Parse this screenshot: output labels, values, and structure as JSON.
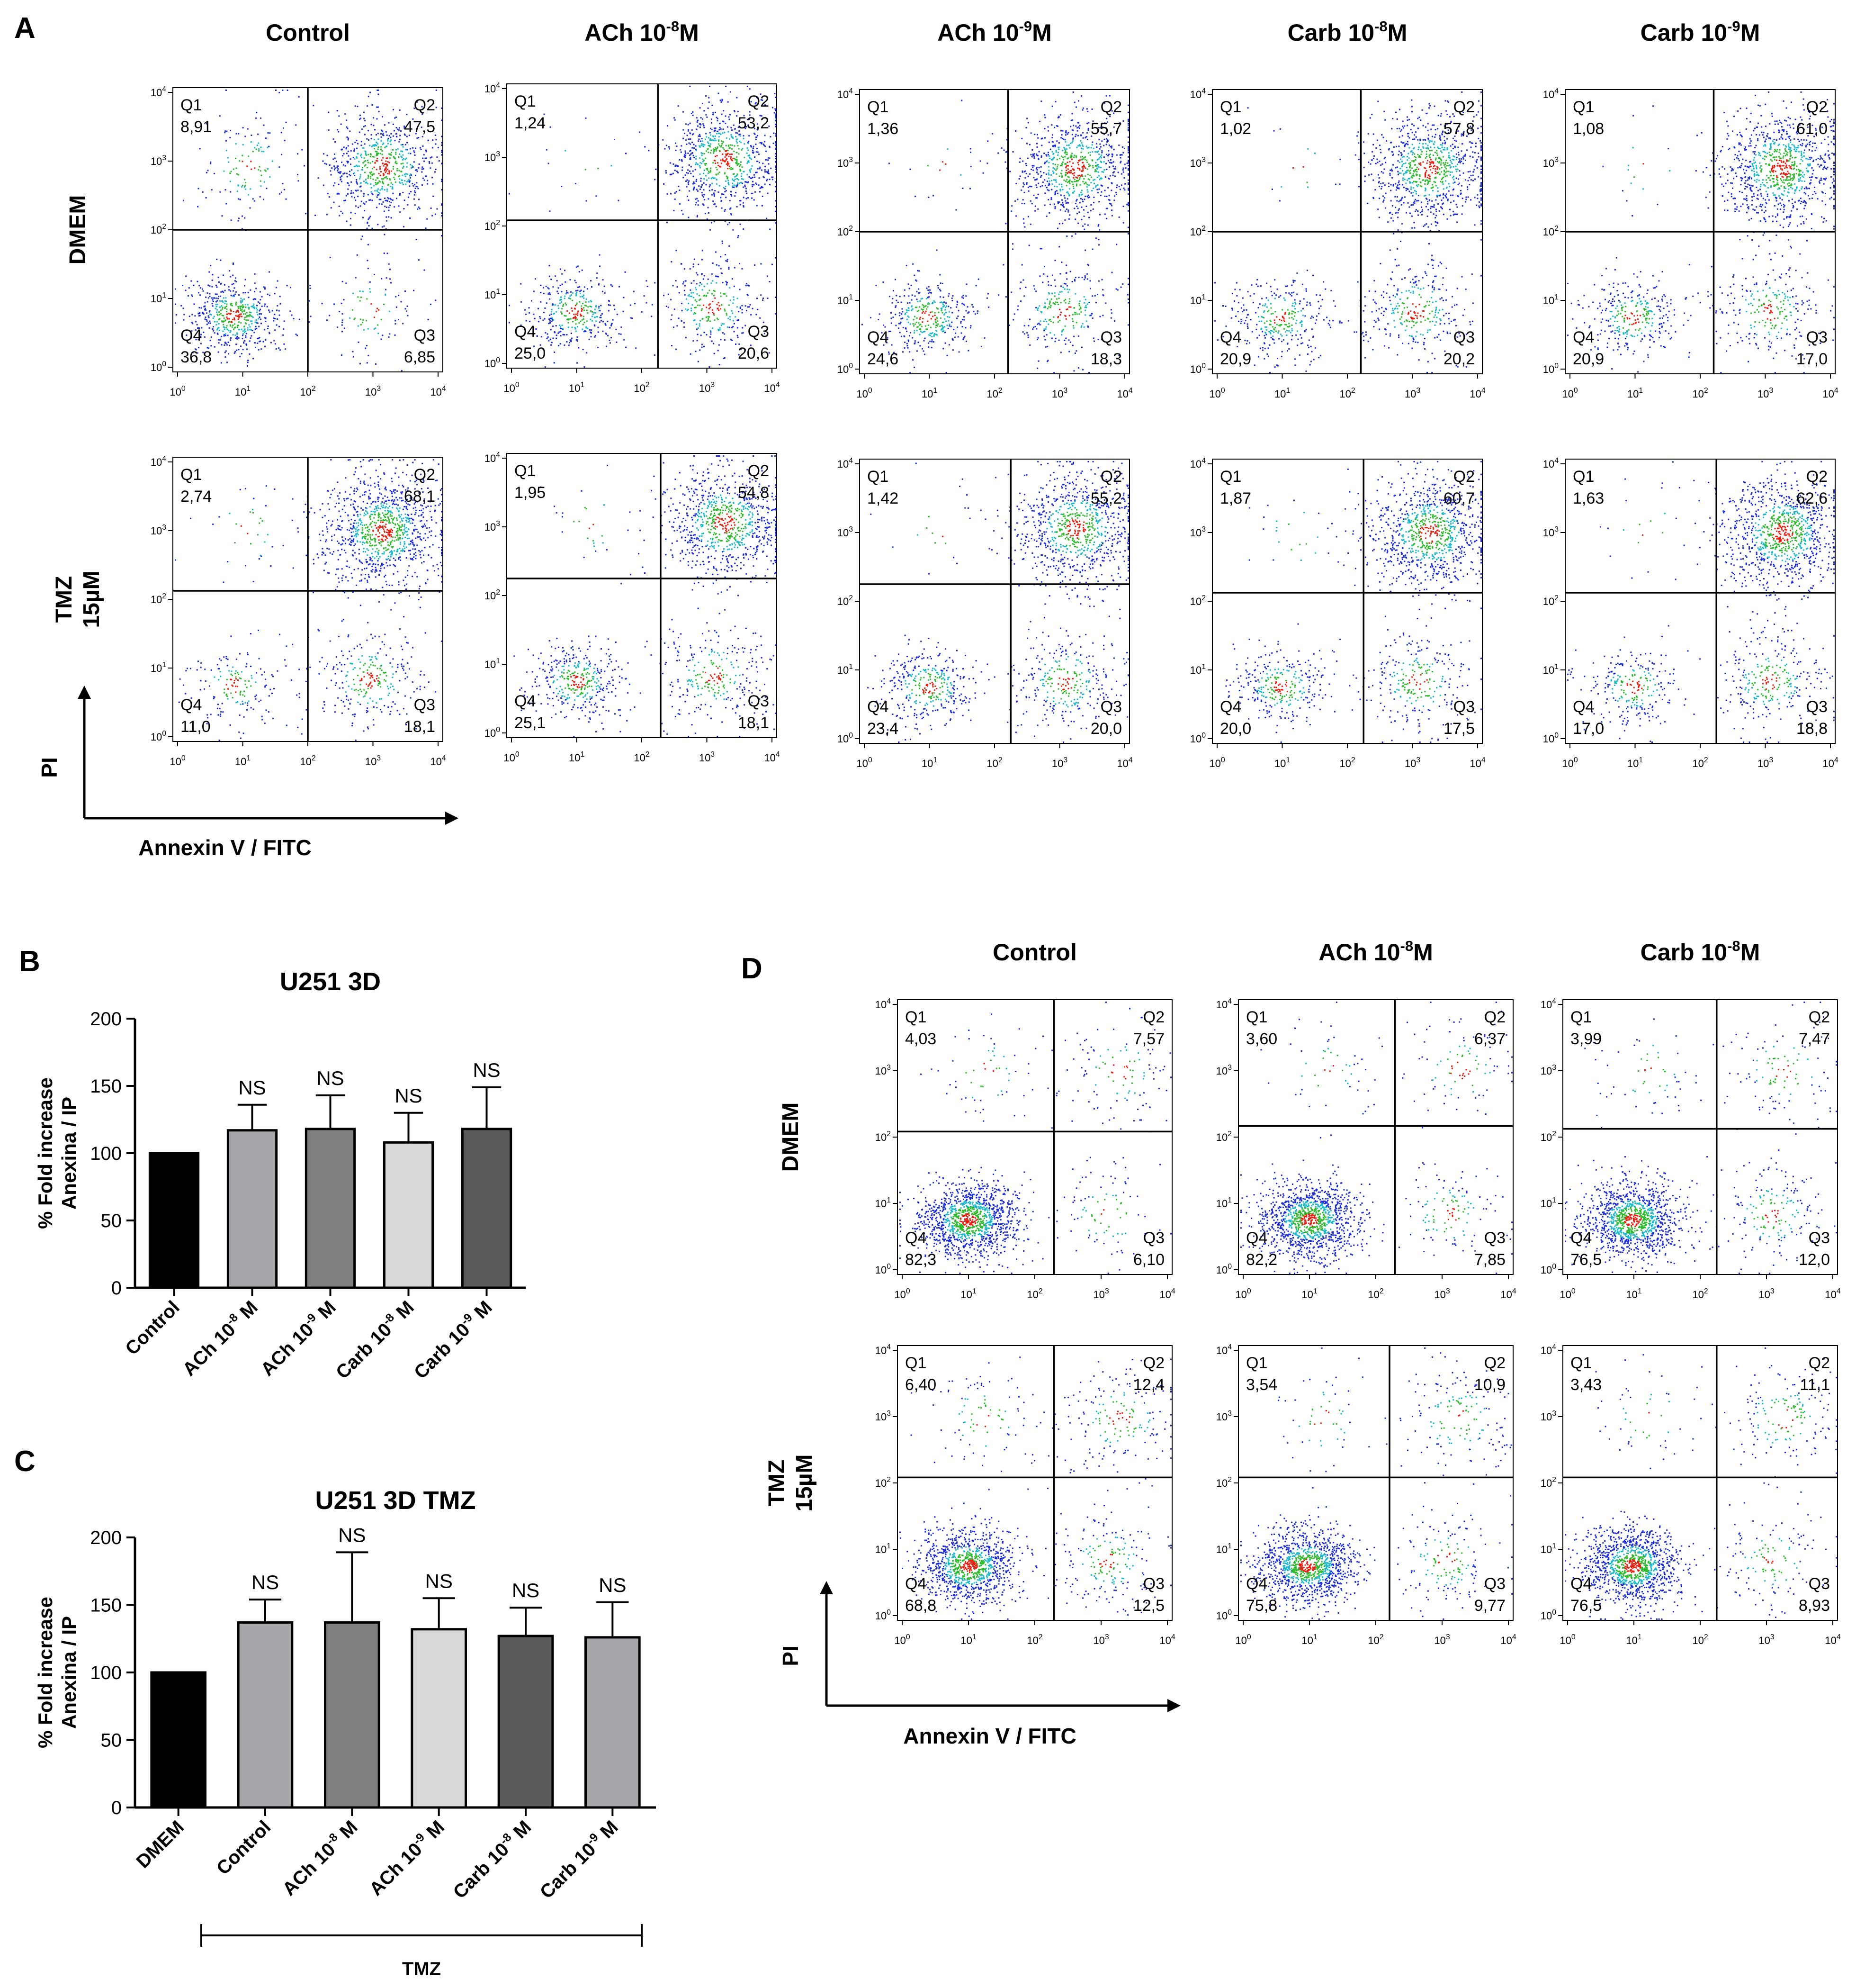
{
  "chart_data": [
    {
      "panel": "A",
      "type": "scatter",
      "subtype": "flow-cytometry-quadrant-grid",
      "columns": [
        "Control",
        "ACh 10-8M",
        "ACh 10-9M",
        "Carb 10-8M",
        "Carb 10-9M"
      ],
      "column_labels": [
        {
          "base": "Control",
          "exp": "",
          "tail": ""
        },
        {
          "base": "ACh 10",
          "exp": "-8",
          "tail": "M"
        },
        {
          "base": "ACh 10",
          "exp": "-9",
          "tail": "M"
        },
        {
          "base": "Carb 10",
          "exp": "-8",
          "tail": "M"
        },
        {
          "base": "Carb 10",
          "exp": "-9",
          "tail": "M"
        }
      ],
      "rows": [
        {
          "label_lines": [
            "DMEM"
          ]
        },
        {
          "label_lines": [
            "TMZ",
            "15µM"
          ]
        }
      ],
      "xlabel": "Annexin V / FITC",
      "ylabel": "PI",
      "axis_ticks": [
        "10^0",
        "10^1",
        "10^2",
        "10^3",
        "10^4"
      ],
      "quadrant_names": [
        "Q1",
        "Q2",
        "Q3",
        "Q4"
      ],
      "quadrants": [
        [
          {
            "Q1": "8,91",
            "Q2": "47,5",
            "Q3": "6,85",
            "Q4": "36,8"
          },
          {
            "Q1": "1,24",
            "Q2": "53,2",
            "Q3": "20,6",
            "Q4": "25,0"
          },
          {
            "Q1": "1,36",
            "Q2": "55,7",
            "Q3": "18,3",
            "Q4": "24,6"
          },
          {
            "Q1": "1,02",
            "Q2": "57,8",
            "Q3": "20,2",
            "Q4": "20,9"
          },
          {
            "Q1": "1,08",
            "Q2": "61,0",
            "Q3": "17,0",
            "Q4": "20,9"
          }
        ],
        [
          {
            "Q1": "2,74",
            "Q2": "68,1",
            "Q3": "18,1",
            "Q4": "11,0"
          },
          {
            "Q1": "1,95",
            "Q2": "54,8",
            "Q3": "18,1",
            "Q4": "25,1"
          },
          {
            "Q1": "1,42",
            "Q2": "55,2",
            "Q3": "20,0",
            "Q4": "23,4"
          },
          {
            "Q1": "1,87",
            "Q2": "60,7",
            "Q3": "17,5",
            "Q4": "20,0"
          },
          {
            "Q1": "1,63",
            "Q2": "62,6",
            "Q3": "18,8",
            "Q4": "17,0"
          }
        ]
      ]
    },
    {
      "panel": "B",
      "type": "bar",
      "title": "U251 3D",
      "ylabel_lines": [
        "% Fold increase",
        "Anexina / IP"
      ],
      "ylim": [
        0,
        200
      ],
      "yticks": [
        0,
        50,
        100,
        150,
        200
      ],
      "categories": [
        "Control",
        "ACh 10-8 M",
        "ACh 10-9 M",
        "Carb 10-8 M",
        "Carb 10-9 M"
      ],
      "category_labels": [
        {
          "base": "Control",
          "exp": "",
          "tail": ""
        },
        {
          "base": "ACh 10",
          "exp": "-8",
          "tail": " M"
        },
        {
          "base": "ACh 10",
          "exp": "-9",
          "tail": " M"
        },
        {
          "base": "Carb 10",
          "exp": "-8",
          "tail": " M"
        },
        {
          "base": "Carb 10",
          "exp": "-9",
          "tail": " M"
        }
      ],
      "values": [
        100,
        117,
        118,
        108,
        118
      ],
      "errors": [
        0,
        19,
        25,
        22,
        31
      ],
      "significance": [
        "",
        "NS",
        "NS",
        "NS",
        "NS"
      ],
      "bar_colors": [
        "#000000",
        "#a6a6aa",
        "#808080",
        "#d9d9d9",
        "#5a5a5a"
      ]
    },
    {
      "panel": "C",
      "type": "bar",
      "title": "U251 3D TMZ",
      "ylabel_lines": [
        "% Fold increase",
        "Anexina / IP"
      ],
      "ylim": [
        0,
        200
      ],
      "yticks": [
        0,
        50,
        100,
        150,
        200
      ],
      "categories": [
        "DMEM",
        "Control",
        "ACh 10-8 M",
        "ACh 10-9 M",
        "Carb 10-8 M",
        "Carb 10-9 M"
      ],
      "category_labels": [
        {
          "base": "DMEM",
          "exp": "",
          "tail": ""
        },
        {
          "base": "Control",
          "exp": "",
          "tail": ""
        },
        {
          "base": "ACh 10",
          "exp": "-8",
          "tail": " M"
        },
        {
          "base": "ACh 10",
          "exp": "-9",
          "tail": " M"
        },
        {
          "base": "Carb 10",
          "exp": "-8",
          "tail": " M"
        },
        {
          "base": "Carb 10",
          "exp": "-9",
          "tail": " M"
        }
      ],
      "values": [
        100,
        137,
        137,
        132,
        127,
        126
      ],
      "errors": [
        0,
        17,
        52,
        23,
        21,
        26
      ],
      "significance": [
        "",
        "NS",
        "NS",
        "NS",
        "NS",
        "NS"
      ],
      "bar_colors": [
        "#000000",
        "#a6a6aa",
        "#808080",
        "#d9d9d9",
        "#5a5a5a",
        "#a6a6aa"
      ],
      "group_bracket_label": "TMZ"
    },
    {
      "panel": "D",
      "type": "scatter",
      "subtype": "flow-cytometry-quadrant-grid",
      "columns": [
        "Control",
        "ACh 10-8M",
        "Carb 10-8M"
      ],
      "column_labels": [
        {
          "base": "Control",
          "exp": "",
          "tail": ""
        },
        {
          "base": "ACh 10",
          "exp": "-8",
          "tail": "M"
        },
        {
          "base": "Carb 10",
          "exp": "-8",
          "tail": "M"
        }
      ],
      "rows": [
        {
          "label_lines": [
            "DMEM"
          ]
        },
        {
          "label_lines": [
            "TMZ",
            "15µM"
          ]
        }
      ],
      "xlabel": "Annexin V / FITC",
      "ylabel": "PI",
      "axis_ticks": [
        "10^0",
        "10^1",
        "10^2",
        "10^3",
        "10^4"
      ],
      "quadrant_names": [
        "Q1",
        "Q2",
        "Q3",
        "Q4"
      ],
      "quadrants": [
        [
          {
            "Q1": "4,03",
            "Q2": "7,57",
            "Q3": "6,10",
            "Q4": "82,3"
          },
          {
            "Q1": "3,60",
            "Q2": "6,37",
            "Q3": "7,85",
            "Q4": "82,2"
          },
          {
            "Q1": "3,99",
            "Q2": "7,47",
            "Q3": "12,0",
            "Q4": "76,5"
          }
        ],
        [
          {
            "Q1": "6,40",
            "Q2": "12,4",
            "Q3": "12,5",
            "Q4": "68,8"
          },
          {
            "Q1": "3,54",
            "Q2": "10,9",
            "Q3": "9,77",
            "Q4": "75,8"
          },
          {
            "Q1": "3,43",
            "Q2": "11,1",
            "Q3": "8,93",
            "Q4": "76,5"
          }
        ]
      ]
    }
  ]
}
